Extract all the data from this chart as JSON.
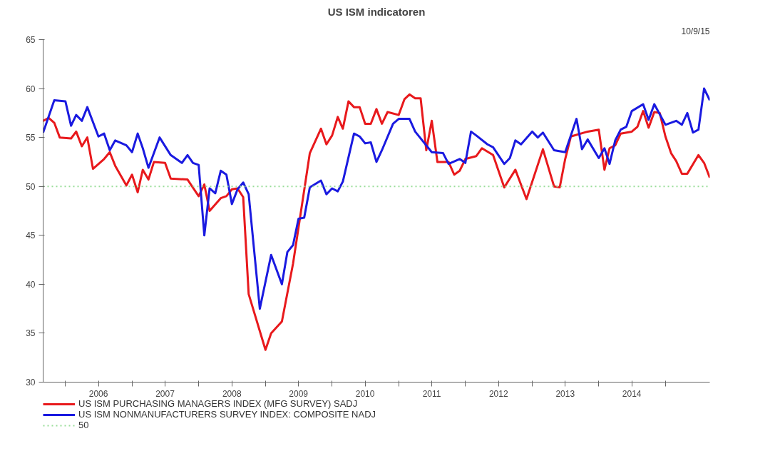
{
  "chart_data": {
    "type": "line",
    "title": "US ISM indicatoren",
    "annotations": [
      "10/9/15"
    ],
    "xlim": [
      "2005-09",
      "2015-09"
    ],
    "xticks": [
      {
        "value": "2006-01",
        "label": null
      },
      {
        "value": "2006-07",
        "label": "2006"
      },
      {
        "value": "2007-01",
        "label": null
      },
      {
        "value": "2007-07",
        "label": "2007"
      },
      {
        "value": "2008-01",
        "label": null
      },
      {
        "value": "2008-07",
        "label": "2008"
      },
      {
        "value": "2009-01",
        "label": null
      },
      {
        "value": "2009-07",
        "label": "2009"
      },
      {
        "value": "2010-01",
        "label": null
      },
      {
        "value": "2010-07",
        "label": "2010"
      },
      {
        "value": "2011-01",
        "label": null
      },
      {
        "value": "2011-07",
        "label": "2011"
      },
      {
        "value": "2012-01",
        "label": null
      },
      {
        "value": "2012-07",
        "label": "2012"
      },
      {
        "value": "2013-01",
        "label": null
      },
      {
        "value": "2013-07",
        "label": "2013"
      },
      {
        "value": "2014-01",
        "label": null
      },
      {
        "value": "2014-07",
        "label": "2014"
      },
      {
        "value": "2015-01",
        "label": null
      }
    ],
    "ylim": [
      30,
      65
    ],
    "yticks": [
      30,
      35,
      40,
      45,
      50,
      55,
      60,
      65
    ],
    "grid": false,
    "legend": "bottom",
    "line_style": "solid",
    "ref_lines": [
      {
        "axis": "y",
        "value": 50,
        "label": "50",
        "color": "#99dd99",
        "line_style": "dotted"
      }
    ],
    "series": [
      {
        "name": "US ISM PURCHASING MANAGERS INDEX (MFG SURVEY) SADJ",
        "color": "#e8191c",
        "x": [
          "2005-09",
          "2005-10",
          "2005-11",
          "2005-12",
          "2006-02",
          "2006-03",
          "2006-04",
          "2006-05",
          "2006-06",
          "2006-08",
          "2006-09",
          "2006-10",
          "2006-12",
          "2007-01",
          "2007-02",
          "2007-03",
          "2007-04",
          "2007-05",
          "2007-07",
          "2007-08",
          "2007-11",
          "2008-01",
          "2008-02",
          "2008-03",
          "2008-05",
          "2008-06",
          "2008-07",
          "2008-08",
          "2008-09",
          "2008-10",
          "2009-01",
          "2009-02",
          "2009-04",
          "2009-06",
          "2009-09",
          "2009-11",
          "2009-12",
          "2010-01",
          "2010-02",
          "2010-03",
          "2010-04",
          "2010-05",
          "2010-06",
          "2010-07",
          "2010-08",
          "2010-09",
          "2010-10",
          "2010-11",
          "2011-01",
          "2011-02",
          "2011-03",
          "2011-04",
          "2011-05",
          "2011-06",
          "2011-07",
          "2011-08",
          "2011-10",
          "2011-11",
          "2011-12",
          "2012-01",
          "2012-03",
          "2012-04",
          "2012-06",
          "2012-08",
          "2012-10",
          "2012-12",
          "2013-03",
          "2013-05",
          "2013-06",
          "2013-07",
          "2013-08",
          "2013-11",
          "2014-01",
          "2014-02",
          "2014-03",
          "2014-04",
          "2014-05",
          "2014-07",
          "2014-08",
          "2014-09",
          "2014-10",
          "2014-11",
          "2014-12",
          "2015-01",
          "2015-02",
          "2015-03",
          "2015-04",
          "2015-05",
          "2015-07",
          "2015-08",
          "2015-09"
        ],
        "values": [
          56.7,
          57.0,
          56.5,
          55.0,
          54.9,
          55.6,
          54.1,
          55.0,
          51.8,
          52.8,
          53.5,
          52.1,
          50.1,
          51.2,
          49.4,
          51.7,
          50.7,
          52.5,
          52.4,
          50.8,
          50.7,
          49.0,
          50.2,
          47.5,
          48.8,
          49.0,
          49.7,
          49.8,
          48.9,
          39.0,
          33.3,
          35.0,
          36.2,
          42.1,
          53.4,
          55.9,
          54.3,
          55.2,
          57.1,
          55.9,
          58.7,
          58.1,
          58.1,
          56.4,
          56.4,
          57.9,
          56.4,
          57.6,
          57.3,
          58.9,
          59.4,
          59.0,
          59.0,
          53.7,
          56.7,
          52.5,
          52.5,
          51.2,
          51.6,
          52.8,
          53.1,
          53.9,
          53.2,
          49.9,
          51.7,
          48.7,
          53.8,
          50.0,
          49.9,
          52.8,
          55.1,
          55.6,
          55.8,
          51.7,
          53.9,
          54.2,
          55.4,
          55.6,
          56.1,
          57.7,
          56.0,
          57.6,
          57.5,
          55.1,
          53.4,
          52.6,
          51.3,
          51.3,
          53.2,
          52.4,
          50.9
        ]
      },
      {
        "name": "US ISM NONMANUFACTURERS SURVEY INDEX: COMPOSITE NADJ",
        "color": "#1a1ae0",
        "x": [
          "2005-09",
          "2005-11",
          "2006-01",
          "2006-02",
          "2006-03",
          "2006-04",
          "2006-05",
          "2006-07",
          "2006-08",
          "2006-09",
          "2006-10",
          "2006-12",
          "2007-01",
          "2007-02",
          "2007-03",
          "2007-04",
          "2007-06",
          "2007-08",
          "2007-10",
          "2007-11",
          "2007-12",
          "2008-01",
          "2008-02",
          "2008-03",
          "2008-04",
          "2008-05",
          "2008-06",
          "2008-07",
          "2008-08",
          "2008-09",
          "2008-10",
          "2008-12",
          "2009-02",
          "2009-04",
          "2009-05",
          "2009-06",
          "2009-07",
          "2009-08",
          "2009-09",
          "2009-11",
          "2009-12",
          "2010-01",
          "2010-02",
          "2010-03",
          "2010-05",
          "2010-06",
          "2010-07",
          "2010-08",
          "2010-09",
          "2010-10",
          "2010-12",
          "2011-01",
          "2011-03",
          "2011-04",
          "2011-07",
          "2011-09",
          "2011-10",
          "2011-12",
          "2012-01",
          "2012-02",
          "2012-03",
          "2012-05",
          "2012-06",
          "2012-08",
          "2012-09",
          "2012-10",
          "2012-11",
          "2013-01",
          "2013-02",
          "2013-03",
          "2013-05",
          "2013-07",
          "2013-09",
          "2013-10",
          "2013-11",
          "2014-01",
          "2014-02",
          "2014-03",
          "2014-04",
          "2014-05",
          "2014-06",
          "2014-07",
          "2014-09",
          "2014-10",
          "2014-11",
          "2015-01",
          "2015-03",
          "2015-04",
          "2015-05",
          "2015-06",
          "2015-07",
          "2015-08",
          "2015-09"
        ],
        "values": [
          55.5,
          58.8,
          58.7,
          56.2,
          57.3,
          56.7,
          58.1,
          55.1,
          55.4,
          53.7,
          54.7,
          54.2,
          53.5,
          55.4,
          53.9,
          51.9,
          55.0,
          53.2,
          52.4,
          53.2,
          52.4,
          52.2,
          45.0,
          49.8,
          49.3,
          51.6,
          51.2,
          48.2,
          49.7,
          50.4,
          49.2,
          37.5,
          43.0,
          40.0,
          43.3,
          44.0,
          46.7,
          46.8,
          49.9,
          50.6,
          49.2,
          49.8,
          49.5,
          50.5,
          55.4,
          55.1,
          54.4,
          54.5,
          52.5,
          53.7,
          56.4,
          56.9,
          56.9,
          55.6,
          53.5,
          53.4,
          52.3,
          52.8,
          52.4,
          55.6,
          55.2,
          54.3,
          54.0,
          52.3,
          52.9,
          54.7,
          54.3,
          55.6,
          55.0,
          55.5,
          53.7,
          53.5,
          56.9,
          53.8,
          54.8,
          52.9,
          53.9,
          52.3,
          54.7,
          55.8,
          56.1,
          57.7,
          58.4,
          56.8,
          58.4,
          56.3,
          56.7,
          56.3,
          57.5,
          55.5,
          55.8,
          60.0,
          58.8
        ]
      }
    ]
  }
}
